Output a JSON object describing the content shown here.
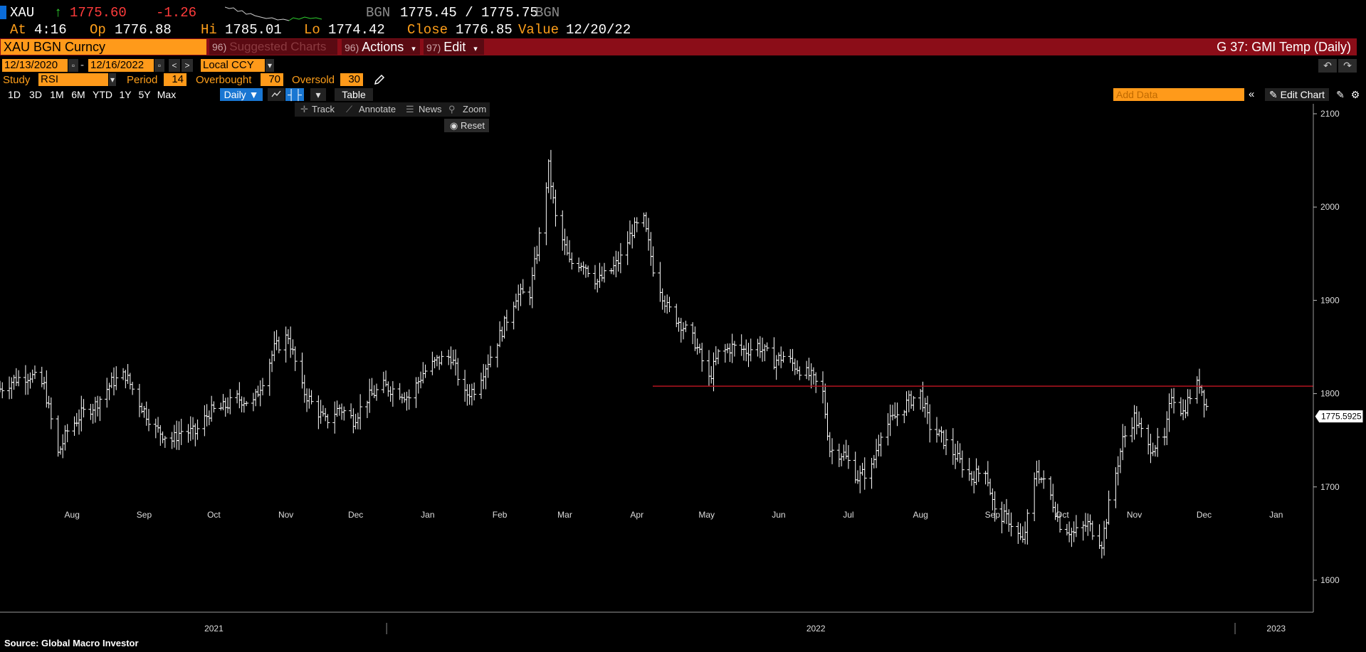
{
  "quote": {
    "ticker": "XAU",
    "arrow": "↑",
    "last": "1775.60",
    "change": "-1.26",
    "source": "BGN",
    "bid_ask": "1775.45 / 1775.75",
    "source2": "BGN"
  },
  "stats": {
    "at_label": "At",
    "at_value": "4:16",
    "op_label": "Op",
    "op_value": "1776.88",
    "hi_label": "Hi",
    "hi_value": "1785.01",
    "lo_label": "Lo",
    "lo_value": "1774.42",
    "close_label": "Close",
    "close_value": "1776.85",
    "value_label": "Value",
    "value_value": "12/20/22"
  },
  "menu": {
    "security": "XAU BGN Curncy",
    "suggested_num": "96)",
    "suggested": "Suggested Charts",
    "actions_num": "96)",
    "actions": "Actions",
    "edit_num": "97)",
    "edit": "Edit",
    "title": "G 37: GMI Temp (Daily)"
  },
  "dates": {
    "start": "12/13/2020",
    "dash": "-",
    "end": "12/16/2022",
    "currency": "Local CCY"
  },
  "study": {
    "label": "Study",
    "value": "RSI",
    "period_label": "Period",
    "period": "14",
    "overbought_label": "Overbought",
    "overbought": "70",
    "oversold_label": "Oversold",
    "oversold": "30"
  },
  "ranges": [
    "1D",
    "3D",
    "1M",
    "6M",
    "YTD",
    "1Y",
    "5Y",
    "Max"
  ],
  "toolbar": {
    "daily": "Daily ▼",
    "table": "Table",
    "add_data_placeholder": "Add Data",
    "edit_chart": "Edit Chart"
  },
  "chart_tools": {
    "track": "Track",
    "annotate": "Annotate",
    "news": "News",
    "zoom": "Zoom",
    "reset": "Reset"
  },
  "icons": {
    "collapse": "double-chevron-left-icon",
    "pencil": "pencil-icon",
    "gear": "gear-icon",
    "undo": "undo-icon",
    "redo": "redo-icon"
  },
  "colors": {
    "menu_bar": "#8b0d18",
    "orange_field": "#ff9a1a",
    "price_down": "#ff3b3b",
    "reference_line": "#b3141f",
    "bars": "#ffffff"
  },
  "chart_data": {
    "type": "ohlc",
    "title": "",
    "xlabel": "",
    "ylabel": "",
    "ylim": [
      1575,
      2110
    ],
    "y_ticks": [
      1600,
      1700,
      1800,
      1900,
      2000,
      2100
    ],
    "x_month_labels": [
      "Aug",
      "Sep",
      "Oct",
      "Nov",
      "Dec",
      "Jan",
      "Feb",
      "Mar",
      "Apr",
      "May",
      "Jun",
      "Jul",
      "Aug",
      "Sep",
      "Oct",
      "Nov",
      "Dec",
      "Jan"
    ],
    "x_year_labels": [
      "2021",
      "2022",
      "2023"
    ],
    "last_price_label": "1775.5925",
    "last_price": 1775.59,
    "reference_line": {
      "value": 1808,
      "start": "2022-05-01",
      "end": "2023-01-31"
    },
    "x_start": "2021-07-15",
    "x_end": "2023-01-31",
    "series_close": [
      [
        "2021-07-15",
        1805
      ],
      [
        "2021-07-21",
        1815
      ],
      [
        "2021-07-28",
        1820
      ],
      [
        "2021-08-03",
        1808
      ],
      [
        "2021-08-09",
        1735
      ],
      [
        "2021-08-13",
        1760
      ],
      [
        "2021-08-19",
        1778
      ],
      [
        "2021-08-25",
        1788
      ],
      [
        "2021-09-01",
        1812
      ],
      [
        "2021-09-07",
        1820
      ],
      [
        "2021-09-13",
        1790
      ],
      [
        "2021-09-20",
        1762
      ],
      [
        "2021-09-27",
        1750
      ],
      [
        "2021-10-01",
        1760
      ],
      [
        "2021-10-07",
        1758
      ],
      [
        "2021-10-13",
        1780
      ],
      [
        "2021-10-19",
        1785
      ],
      [
        "2021-10-25",
        1795
      ],
      [
        "2021-11-01",
        1790
      ],
      [
        "2021-11-05",
        1815
      ],
      [
        "2021-11-10",
        1848
      ],
      [
        "2021-11-16",
        1862
      ],
      [
        "2021-11-22",
        1805
      ],
      [
        "2021-11-26",
        1790
      ],
      [
        "2021-12-02",
        1770
      ],
      [
        "2021-12-08",
        1785
      ],
      [
        "2021-12-14",
        1772
      ],
      [
        "2021-12-20",
        1795
      ],
      [
        "2021-12-27",
        1808
      ],
      [
        "2022-01-03",
        1802
      ],
      [
        "2022-01-07",
        1796
      ],
      [
        "2022-01-13",
        1822
      ],
      [
        "2022-01-19",
        1835
      ],
      [
        "2022-01-25",
        1840
      ],
      [
        "2022-01-31",
        1798
      ],
      [
        "2022-02-04",
        1805
      ],
      [
        "2022-02-10",
        1835
      ],
      [
        "2022-02-16",
        1868
      ],
      [
        "2022-02-22",
        1905
      ],
      [
        "2022-02-28",
        1908
      ],
      [
        "2022-03-04",
        1968
      ],
      [
        "2022-03-08",
        2043
      ],
      [
        "2022-03-11",
        1988
      ],
      [
        "2022-03-17",
        1940
      ],
      [
        "2022-03-23",
        1940
      ],
      [
        "2022-03-29",
        1920
      ],
      [
        "2022-04-04",
        1932
      ],
      [
        "2022-04-08",
        1945
      ],
      [
        "2022-04-13",
        1975
      ],
      [
        "2022-04-18",
        1985
      ],
      [
        "2022-04-22",
        1935
      ],
      [
        "2022-04-28",
        1892
      ],
      [
        "2022-05-04",
        1875
      ],
      [
        "2022-05-10",
        1855
      ],
      [
        "2022-05-16",
        1815
      ],
      [
        "2022-05-20",
        1842
      ],
      [
        "2022-05-26",
        1850
      ],
      [
        "2022-06-01",
        1846
      ],
      [
        "2022-06-06",
        1852
      ],
      [
        "2022-06-13",
        1835
      ],
      [
        "2022-06-17",
        1840
      ],
      [
        "2022-06-23",
        1828
      ],
      [
        "2022-06-29",
        1818
      ],
      [
        "2022-07-04",
        1800
      ],
      [
        "2022-07-07",
        1740
      ],
      [
        "2022-07-13",
        1735
      ],
      [
        "2022-07-19",
        1710
      ],
      [
        "2022-07-25",
        1720
      ],
      [
        "2022-07-29",
        1760
      ],
      [
        "2022-08-04",
        1775
      ],
      [
        "2022-08-10",
        1792
      ],
      [
        "2022-08-15",
        1800
      ],
      [
        "2022-08-19",
        1765
      ],
      [
        "2022-08-25",
        1750
      ],
      [
        "2022-08-31",
        1730
      ],
      [
        "2022-09-06",
        1710
      ],
      [
        "2022-09-12",
        1720
      ],
      [
        "2022-09-16",
        1672
      ],
      [
        "2022-09-22",
        1665
      ],
      [
        "2022-09-28",
        1640
      ],
      [
        "2022-10-04",
        1718
      ],
      [
        "2022-10-10",
        1690
      ],
      [
        "2022-10-14",
        1660
      ],
      [
        "2022-10-20",
        1650
      ],
      [
        "2022-10-26",
        1660
      ],
      [
        "2022-11-01",
        1640
      ],
      [
        "2022-11-04",
        1680
      ],
      [
        "2022-11-10",
        1750
      ],
      [
        "2022-11-15",
        1775
      ],
      [
        "2022-11-21",
        1742
      ],
      [
        "2022-11-28",
        1750
      ],
      [
        "2022-12-01",
        1800
      ],
      [
        "2022-12-06",
        1780
      ],
      [
        "2022-12-09",
        1798
      ],
      [
        "2022-12-13",
        1812
      ],
      [
        "2022-12-16",
        1786
      ]
    ]
  },
  "source_note": "Source: Global Macro Investor"
}
